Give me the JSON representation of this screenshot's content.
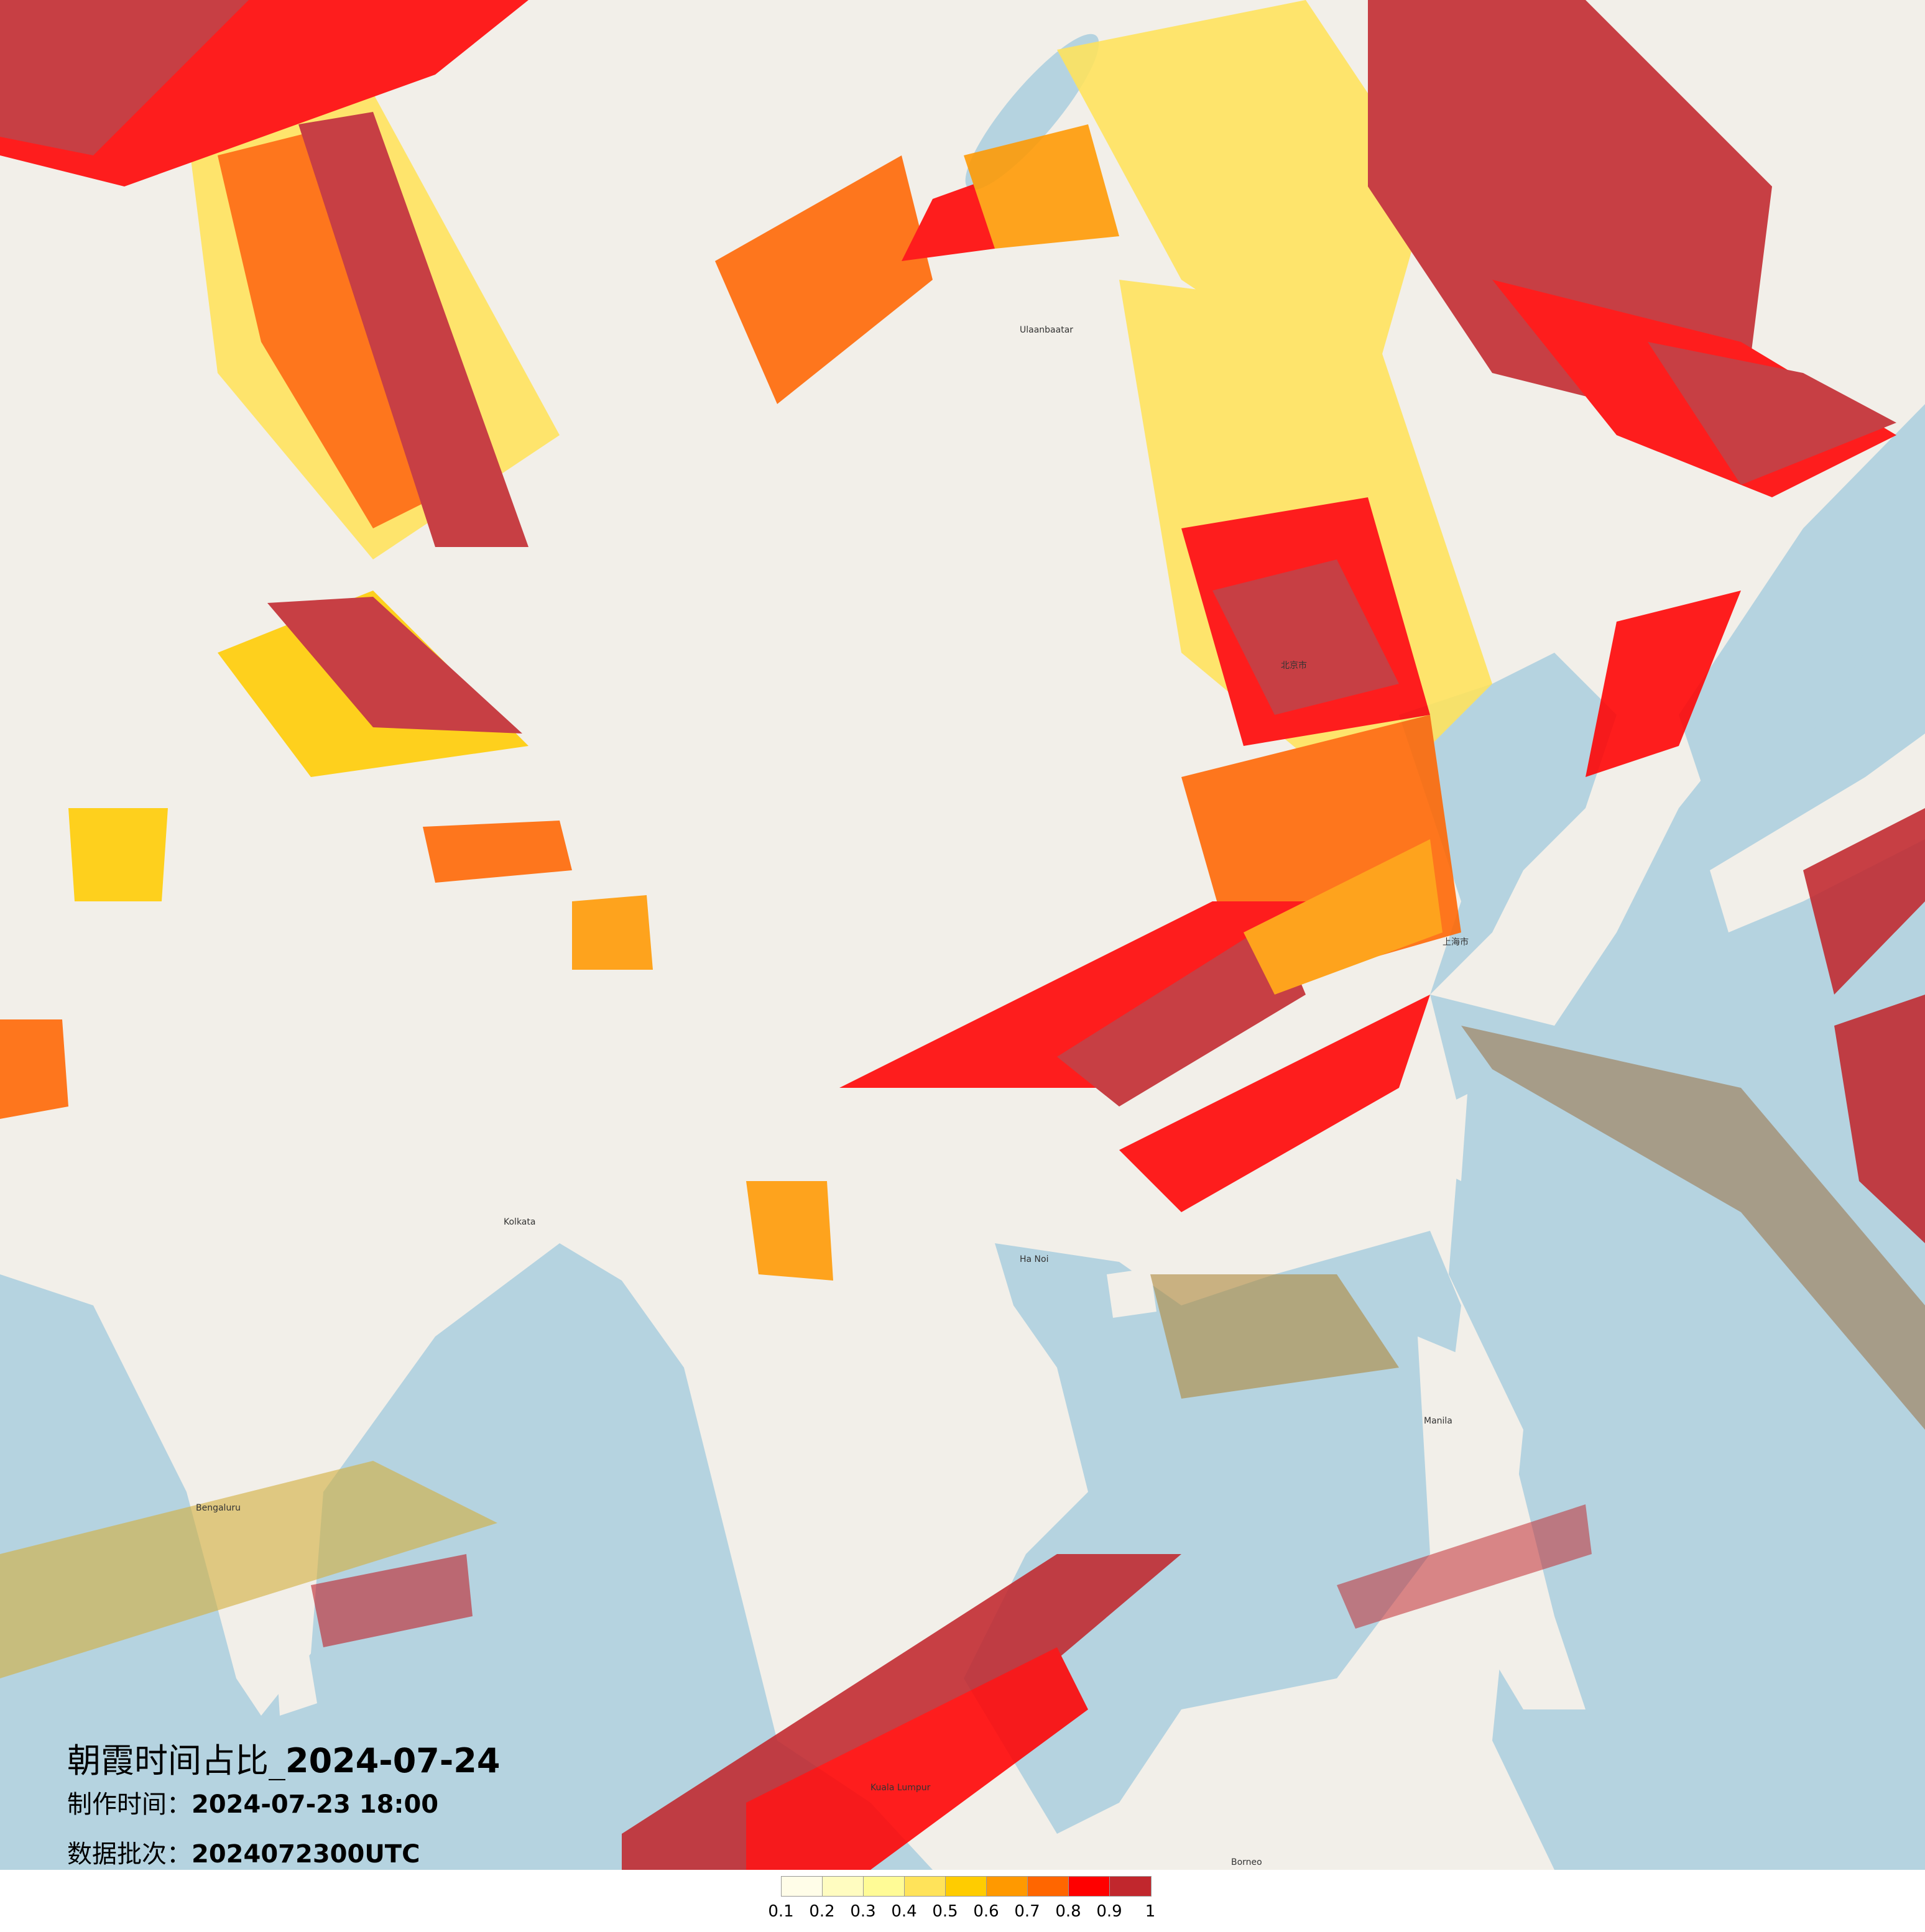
{
  "title": {
    "main_cn": "朝霞时间占比_",
    "main_date": "2024-07-24",
    "made_label": "制作时间：",
    "made_value": "2024-07-23 18:00",
    "batch_label": "数据批次：",
    "batch_value": "2024072300UTC"
  },
  "legend": {
    "labels": [
      "0.1",
      "0.2",
      "0.3",
      "0.4",
      "0.5",
      "0.6",
      "0.7",
      "0.8",
      "0.9",
      "1"
    ],
    "colors": [
      "#fffde8",
      "#fffcc0",
      "#fffb96",
      "#ffe35a",
      "#ffcc00",
      "#ff9900",
      "#ff6600",
      "#ff0000",
      "#c1272d"
    ]
  },
  "map": {
    "ocean_color": "#b5d3e0",
    "land_color": "#f2efe9",
    "cities": [
      "北京市",
      "上海市",
      "Ulaanbaatar",
      "Kolkata",
      "Bengaluru",
      "Ha Noi",
      "Manila",
      "Kuala Lumpur",
      "Borneo"
    ]
  }
}
